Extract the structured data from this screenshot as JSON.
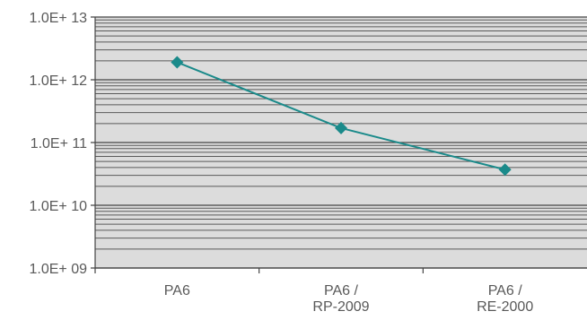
{
  "chart_data": {
    "type": "line",
    "title": "",
    "xlabel": "",
    "ylabel": "",
    "yscale": "log",
    "ylim": [
      1000000000.0,
      10000000000000.0
    ],
    "y_tick_labels": [
      "1.0E+ 09",
      "1.0E+ 10",
      "1.0E+ 11",
      "1.0E+ 12",
      "1.0E+ 13"
    ],
    "categories": [
      [
        "PA6"
      ],
      [
        "PA6 /",
        "RP-2009"
      ],
      [
        "PA6 /",
        "RE-2000"
      ]
    ],
    "series": [
      {
        "values": [
          1900000000000.0,
          170000000000.0,
          37000000000.0
        ],
        "color": "#1a8a8a",
        "marker": "diamond"
      }
    ],
    "grid": true,
    "minor_grid": true,
    "legend": "none",
    "plot_background": "#dcdcdc",
    "grid_color": "#5a5a5a"
  }
}
